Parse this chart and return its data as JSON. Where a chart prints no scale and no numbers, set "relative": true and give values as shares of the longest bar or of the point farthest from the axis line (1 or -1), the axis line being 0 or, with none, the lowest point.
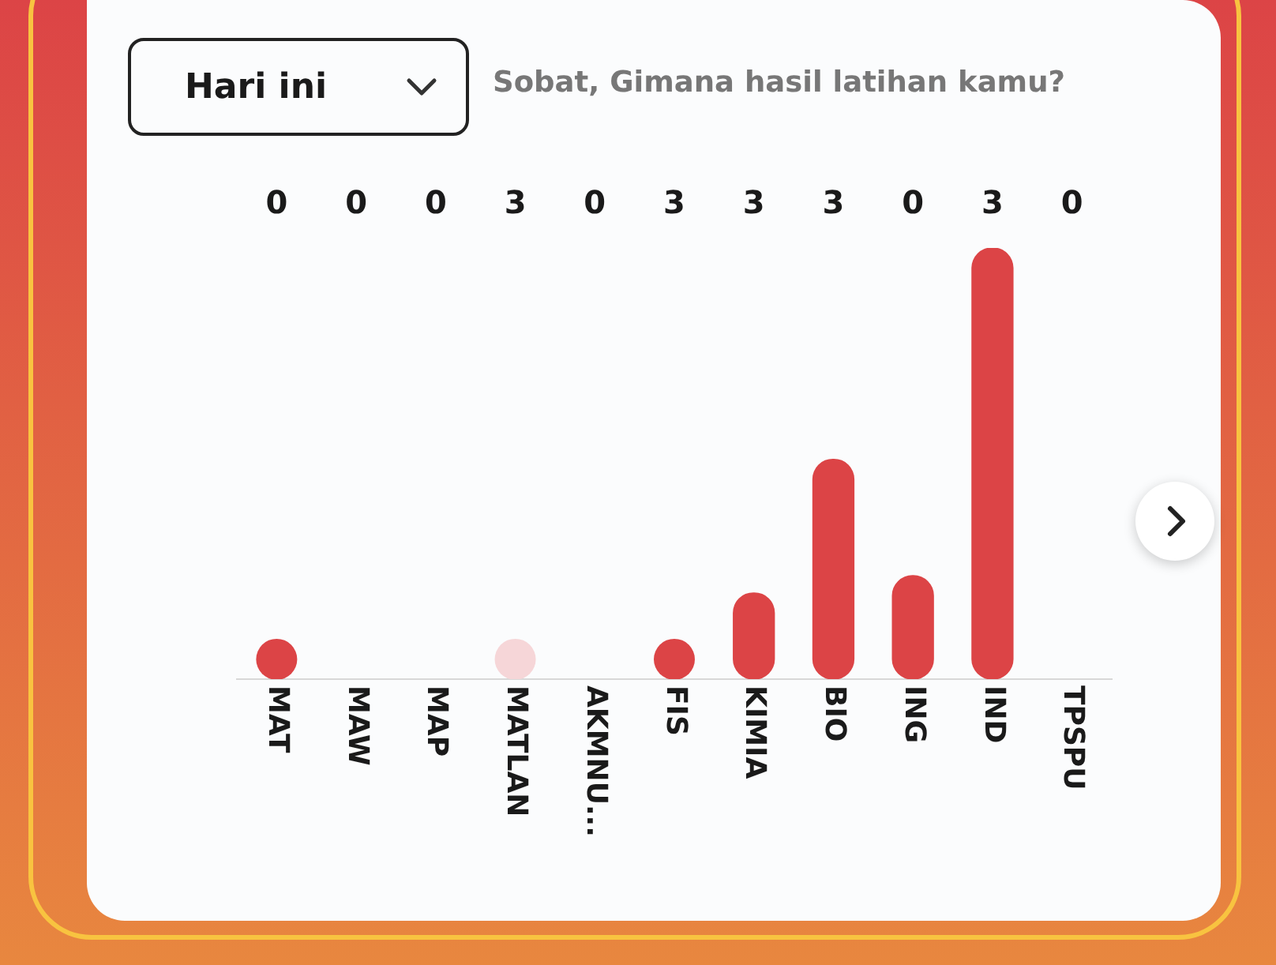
{
  "chart_data": {
    "type": "bar",
    "subtitle": "Sobat, Gimana hasil latihan kamu?",
    "relative": true,
    "annotations": [
      "Hari ini",
      "0",
      "0",
      "0",
      "3",
      "0",
      "3",
      "3",
      "3",
      "0",
      "3",
      "0"
    ],
    "categories": [
      "MAT",
      "MAW",
      "MAP",
      "MATLAN",
      "AKMNU...",
      "FIS",
      "KIMIA",
      "BIO",
      "ING",
      "IND",
      "TPSPU"
    ],
    "marker": "circle",
    "series": [
      {
        "type": "bar",
        "color": "#dc4446",
        "values": [
          null,
          null,
          null,
          null,
          null,
          null,
          0.2,
          0.51,
          0.24,
          1,
          null
        ]
      },
      {
        "type": "scatter",
        "colors": [
          "#dc4446",
          null,
          null,
          "#f6d6d8",
          null,
          "#dc4446",
          null,
          null,
          null,
          null,
          null
        ],
        "values": [
          0.046,
          null,
          null,
          0.046,
          null,
          0.046,
          null,
          null,
          null,
          null,
          null
        ]
      }
    ]
  }
}
